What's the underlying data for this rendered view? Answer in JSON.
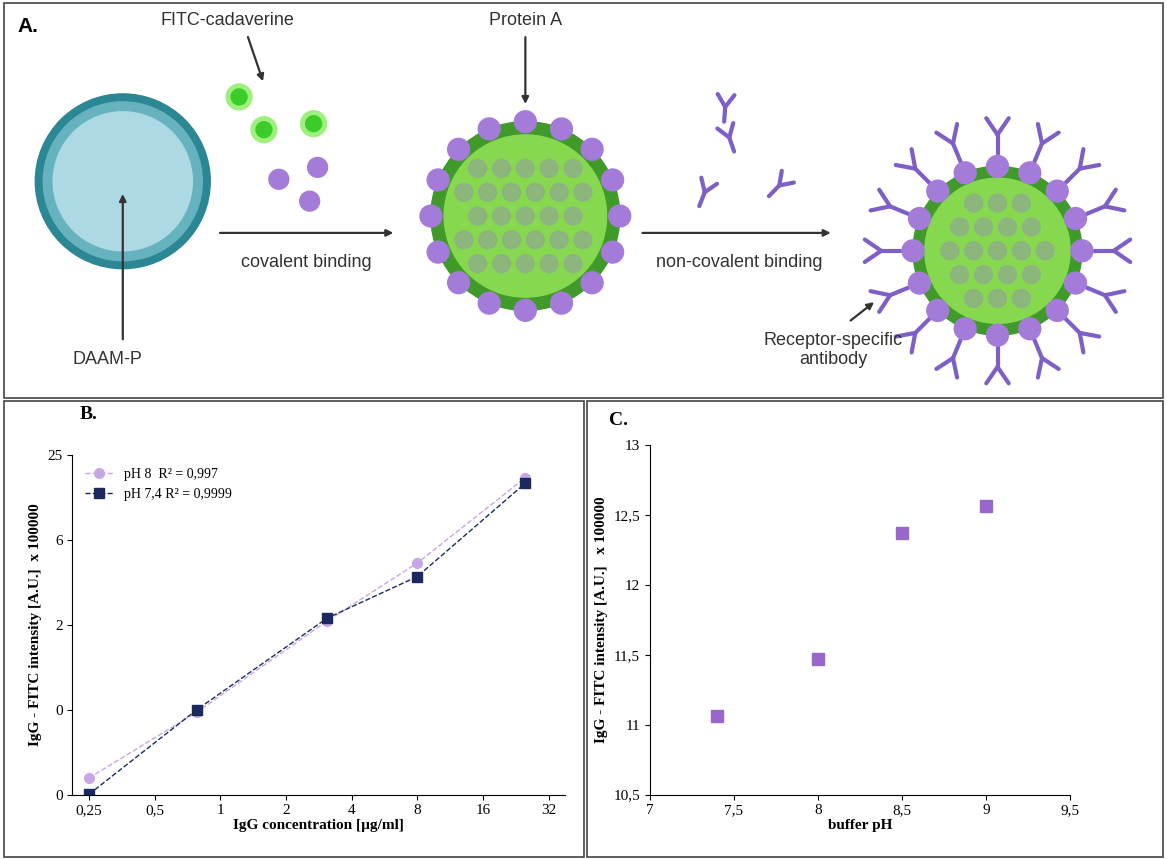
{
  "diagram": {
    "label": "A.",
    "texts": {
      "fitc": "FITC-cadaverine",
      "protein": "Protein A",
      "covalent": "covalent binding",
      "noncovalent": "non-covalent binding",
      "particle": "DAAM-P",
      "antibody": "Receptor-specific\nantibody"
    }
  },
  "chart_data": [
    {
      "title": "B.",
      "type": "scatter",
      "x_label": "IgG concentration [µg/ml]",
      "y_label": "IgG - FITC intensity [A.U.]  x 100000",
      "log": true,
      "xlim": [
        0.21,
        38
      ],
      "xticks": [
        {
          "value": 0.25,
          "label": "0,25"
        },
        {
          "value": 0.5,
          "label": "0,5"
        },
        1,
        2,
        4,
        8,
        16,
        32
      ],
      "ylim": [
        0.09765625,
        25
      ],
      "yticks": [
        {
          "value": 0.09765625,
          "label": "0"
        },
        {
          "value": 0.390625,
          "label": "0"
        },
        {
          "value": 1.5625,
          "label": "2"
        },
        {
          "value": 6.25,
          "label": "6"
        },
        25
      ],
      "legend": "upper left",
      "x": [
        0.25,
        0.78,
        3.1,
        8,
        25
      ],
      "series": [
        {
          "name": "pH 8  R² = 0,997",
          "color": "#c8a6e6",
          "marker": "circle",
          "line_style": "dashed",
          "values": [
            0.128,
            0.375,
            1.67,
            4.29,
            17.3
          ]
        },
        {
          "name": "pH 7,4 R² = 0,9999",
          "color": "#1a2a5e",
          "marker": "square",
          "line_style": "dashed",
          "values": [
            0.098,
            0.39,
            1.75,
            3.44,
            15.8
          ]
        }
      ]
    },
    {
      "title": "C.",
      "type": "scatter",
      "x_label": "buffer pH",
      "y_label": "IgG - FITC intensity [A.U.]   x 100000",
      "x": [
        7.4,
        8,
        8.5,
        9
      ],
      "values": [
        11.06,
        11.47,
        12.37,
        12.56
      ],
      "color": "#9966cc",
      "marker": "square",
      "xlim": [
        7,
        9.5
      ],
      "xticks": [
        7,
        {
          "value": 7.5,
          "label": "7,5"
        },
        8,
        {
          "value": 8.5,
          "label": "8,5"
        },
        9,
        {
          "value": 9.5,
          "label": "9,5"
        }
      ],
      "ylim": [
        10.5,
        13
      ],
      "yticks": [
        {
          "value": 10.5,
          "label": "10,5"
        },
        11,
        {
          "value": 11.5,
          "label": "11,5"
        },
        12,
        {
          "value": 12.5,
          "label": "12,5"
        },
        13
      ]
    }
  ]
}
